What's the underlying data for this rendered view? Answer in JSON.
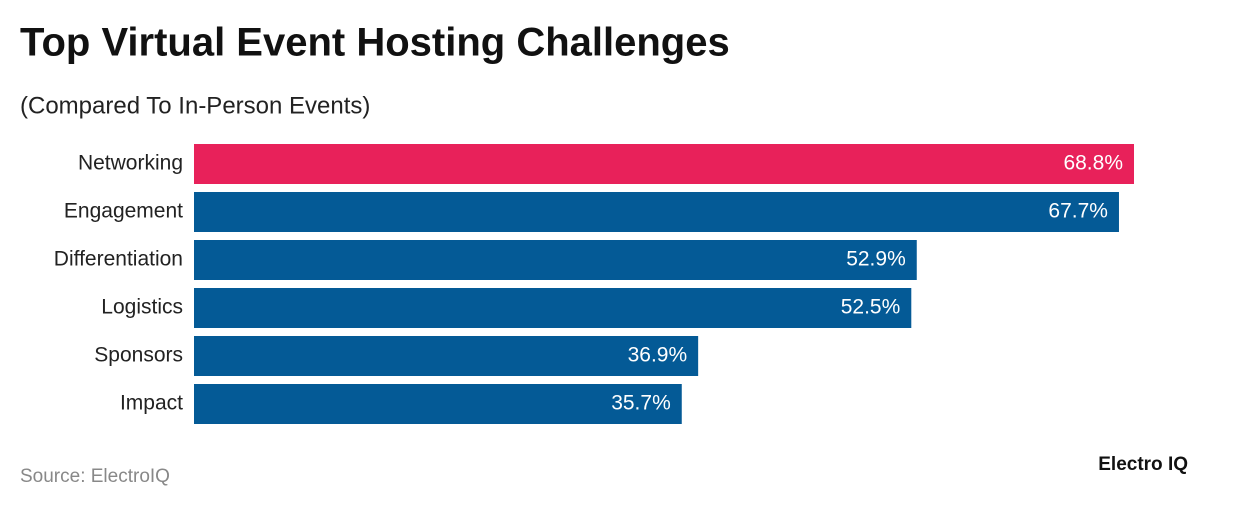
{
  "chart_data": {
    "type": "bar",
    "orientation": "horizontal",
    "title": "Top Virtual Event Hosting Challenges",
    "subtitle": "(Compared To In-Person Events)",
    "categories": [
      "Networking",
      "Engagement",
      "Differentiation",
      "Logistics",
      "Sponsors",
      "Impact"
    ],
    "values": [
      68.8,
      67.7,
      52.9,
      52.5,
      36.9,
      35.7
    ],
    "value_labels": [
      "68.8%",
      "67.7%",
      "52.9%",
      "52.5%",
      "36.9%",
      "35.7%"
    ],
    "colors": [
      "#e8215a",
      "#045a96",
      "#045a96",
      "#045a96",
      "#045a96",
      "#045a96"
    ],
    "source": "Source: ElectroIQ",
    "brand": "Electro IQ"
  }
}
